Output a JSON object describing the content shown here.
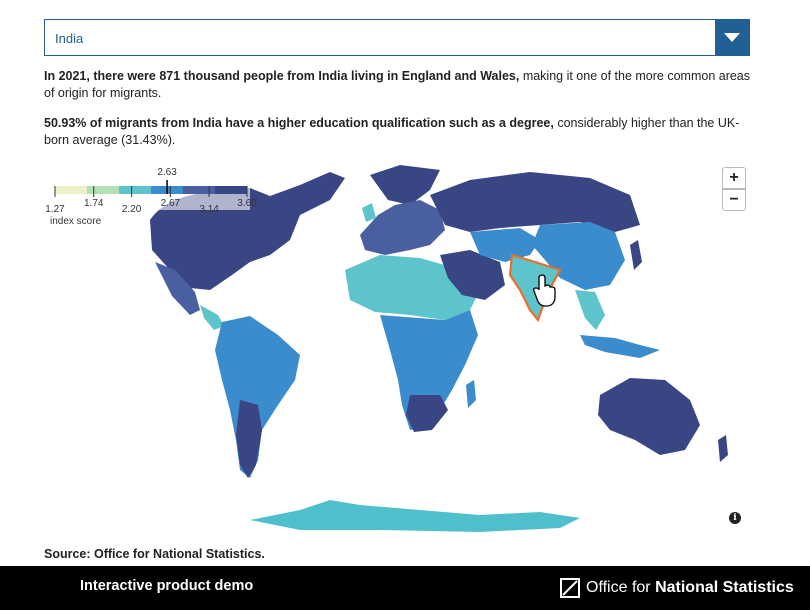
{
  "selector": {
    "value": "India"
  },
  "summary": {
    "p1_bold": "In 2021, there were 871 thousand people from India living in England and Wales,",
    "p1_rest": " making it one of the more common areas of origin for migrants.",
    "p2_bold": "50.93% of migrants from India have a higher education qualification such as a degree,",
    "p2_rest": " considerably higher than the UK-born average (31.43%)."
  },
  "legend": {
    "ticks": [
      "1.27",
      "1.74",
      "2.20",
      "2.67",
      "3.14",
      "3.60"
    ],
    "marker": "2.63",
    "label": "index score",
    "colors": [
      "#edefc6",
      "#b3e0b5",
      "#5ec4cc",
      "#3b8ccd",
      "#4a5fa0",
      "#3a4584"
    ]
  },
  "map": {
    "highlight_color": "#e8702a",
    "highlighted_country": "India"
  },
  "controls": {
    "zoom_in": "+",
    "zoom_out": "−",
    "info": "i"
  },
  "source": "Source: Office for National Statistics.",
  "footer": {
    "demo_label": "Interactive product demo",
    "ons_prefix": "Office for ",
    "ons_bold": "National Statistics"
  }
}
